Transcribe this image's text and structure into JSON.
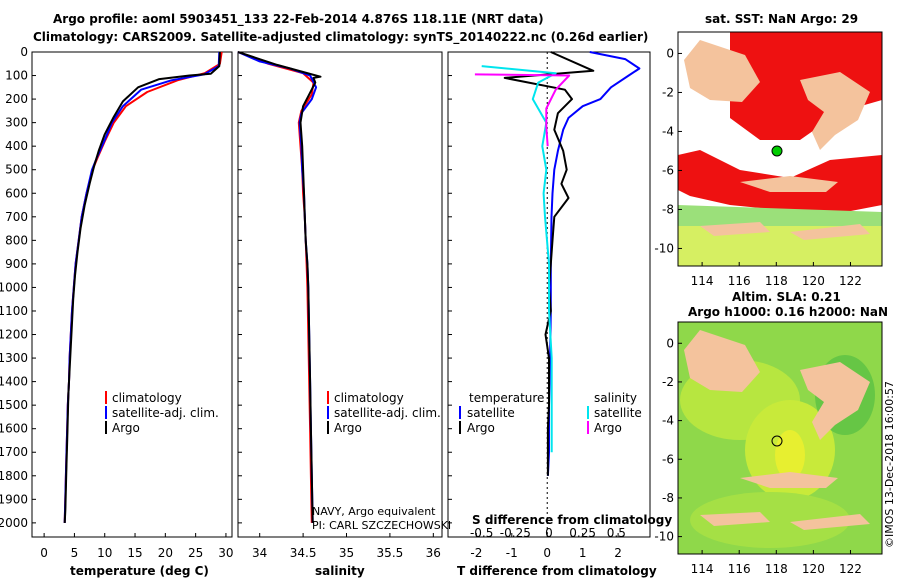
{
  "header": {
    "title_line1": "Argo profile: aoml 5903451_133 22-Feb-2014 4.876S 118.11E (NRT data)",
    "title_line2": "Climatology: CARS2009. Satellite-adjusted climatology: synTS_20140222.nc (0.26d earlier)"
  },
  "colors": {
    "climatology": "#ff0000",
    "satellite": "#0000ff",
    "argo": "#000000",
    "satellite_salinity": "#00e5ee",
    "argo_salinity": "#ff00ff"
  },
  "legend": {
    "climatology": "climatology",
    "satellite_adj": "satellite-adj. clim.",
    "argo": "Argo",
    "temperature_header": "temperature",
    "salinity_header": "salinity",
    "satellite": "satellite"
  },
  "annotation": {
    "navy": "NAVY, Argo equivalent",
    "pi": "PI: CARL SZCZECHOWSKI"
  },
  "credit": "©IMOS 13-Dec-2018 16:00:57",
  "maps": {
    "sst_title": "sat. SST: NaN Argo: 29",
    "sla_title_1": "Altim. SLA: 0.21",
    "sla_title_2": "Argo h1000: 0.16 h2000: NaN",
    "lon_ticks": [
      "114",
      "116",
      "118",
      "120",
      "122"
    ],
    "lat_ticks": [
      "0",
      "-2",
      "-4",
      "-6",
      "-8",
      "-10"
    ]
  },
  "chart_data": [
    {
      "type": "line",
      "title": "",
      "xlabel": "temperature (deg C)",
      "ylabel": "",
      "xlim": [
        -2,
        31
      ],
      "ylim": [
        2060,
        0
      ],
      "x_ticks": [
        "0",
        "5",
        "10",
        "15",
        "20",
        "25",
        "30"
      ],
      "y_ticks": [
        "0",
        "100",
        "200",
        "300",
        "400",
        "500",
        "600",
        "700",
        "800",
        "900",
        "1000",
        "1100",
        "1200",
        "1300",
        "1400",
        "1500",
        "1600",
        "1700",
        "1800",
        "1900",
        "2000"
      ],
      "series": [
        {
          "name": "climatology",
          "color": "#ff0000",
          "points": [
            [
              29.3,
              0
            ],
            [
              29.0,
              50
            ],
            [
              26.5,
              90
            ],
            [
              22,
              120
            ],
            [
              17,
              170
            ],
            [
              13.5,
              230
            ],
            [
              11.5,
              300
            ],
            [
              10,
              380
            ],
            [
              8.8,
              450
            ],
            [
              8,
              500
            ],
            [
              7,
              600
            ],
            [
              6.2,
              700
            ],
            [
              5.7,
              800
            ],
            [
              5.2,
              900
            ],
            [
              4.9,
              1000
            ],
            [
              4.6,
              1100
            ],
            [
              4.4,
              1200
            ],
            [
              4.2,
              1300
            ],
            [
              4.1,
              1400
            ],
            [
              3.9,
              1500
            ],
            [
              3.8,
              1600
            ],
            [
              3.7,
              1700
            ],
            [
              3.6,
              1800
            ],
            [
              3.5,
              1900
            ],
            [
              3.4,
              2000
            ]
          ]
        },
        {
          "name": "satellite-adj. clim.",
          "color": "#0000ff",
          "points": [
            [
              28.9,
              0
            ],
            [
              28.8,
              60
            ],
            [
              26.4,
              95
            ],
            [
              21,
              120
            ],
            [
              16,
              160
            ],
            [
              13,
              230
            ],
            [
              11.2,
              300
            ],
            [
              9.9,
              380
            ],
            [
              8.7,
              450
            ],
            [
              7.9,
              500
            ],
            [
              7,
              600
            ],
            [
              6.2,
              700
            ],
            [
              5.7,
              800
            ],
            [
              5.2,
              900
            ],
            [
              4.9,
              1000
            ],
            [
              4.6,
              1100
            ],
            [
              4.4,
              1200
            ],
            [
              4.2,
              1300
            ],
            [
              4.1,
              1400
            ],
            [
              3.9,
              1500
            ],
            [
              3.8,
              1600
            ],
            [
              3.7,
              1700
            ],
            [
              3.6,
              1800
            ],
            [
              3.5,
              1900
            ],
            [
              3.4,
              2000
            ]
          ]
        },
        {
          "name": "Argo",
          "color": "#000000",
          "points": [
            [
              29.0,
              0
            ],
            [
              28.9,
              60
            ],
            [
              27.5,
              92
            ],
            [
              24,
              100
            ],
            [
              19,
              115
            ],
            [
              15.5,
              150
            ],
            [
              13,
              210
            ],
            [
              11.4,
              280
            ],
            [
              10,
              350
            ],
            [
              9,
              420
            ],
            [
              8.3,
              480
            ],
            [
              7.5,
              560
            ],
            [
              6.7,
              650
            ],
            [
              6.0,
              750
            ],
            [
              5.5,
              850
            ],
            [
              5.1,
              950
            ],
            [
              4.8,
              1050
            ],
            [
              4.6,
              1150
            ],
            [
              4.4,
              1250
            ],
            [
              4.2,
              1350
            ],
            [
              4.0,
              1450
            ],
            [
              3.9,
              1550
            ],
            [
              3.8,
              1650
            ],
            [
              3.7,
              1750
            ],
            [
              3.6,
              1850
            ],
            [
              3.5,
              1950
            ],
            [
              3.4,
              2000
            ]
          ]
        }
      ]
    },
    {
      "type": "line",
      "title": "",
      "xlabel": "salinity",
      "ylabel": "",
      "xlim": [
        33.75,
        36.1
      ],
      "ylim": [
        2060,
        0
      ],
      "x_ticks": [
        "34",
        "34.5",
        "35",
        "35.5",
        "36"
      ],
      "series": [
        {
          "name": "climatology",
          "color": "#ff0000",
          "points": [
            [
              33.75,
              0
            ],
            [
              34.1,
              50
            ],
            [
              34.5,
              90
            ],
            [
              34.62,
              130
            ],
            [
              34.6,
              180
            ],
            [
              34.48,
              250
            ],
            [
              34.45,
              300
            ],
            [
              34.47,
              400
            ],
            [
              34.49,
              500
            ],
            [
              34.5,
              600
            ],
            [
              34.52,
              700
            ],
            [
              34.53,
              800
            ],
            [
              34.54,
              900
            ],
            [
              34.55,
              1000
            ],
            [
              34.56,
              1200
            ],
            [
              34.57,
              1400
            ],
            [
              34.58,
              1600
            ],
            [
              34.59,
              1800
            ],
            [
              34.6,
              2000
            ]
          ]
        },
        {
          "name": "satellite-adj. clim.",
          "color": "#0000ff",
          "points": [
            [
              33.75,
              0
            ],
            [
              34.0,
              40
            ],
            [
              34.35,
              70
            ],
            [
              34.58,
              100
            ],
            [
              34.65,
              150
            ],
            [
              34.6,
              200
            ],
            [
              34.48,
              260
            ],
            [
              34.46,
              300
            ],
            [
              34.48,
              400
            ],
            [
              34.49,
              500
            ],
            [
              34.51,
              600
            ],
            [
              34.52,
              700
            ],
            [
              34.53,
              800
            ],
            [
              34.55,
              900
            ],
            [
              34.56,
              1000
            ],
            [
              34.57,
              1200
            ],
            [
              34.58,
              1400
            ],
            [
              34.59,
              1600
            ],
            [
              34.6,
              1800
            ],
            [
              34.61,
              2000
            ]
          ]
        },
        {
          "name": "Argo",
          "color": "#000000",
          "points": [
            [
              33.75,
              0
            ],
            [
              34.2,
              55
            ],
            [
              34.6,
              95
            ],
            [
              34.7,
              105
            ],
            [
              34.62,
              110
            ],
            [
              34.64,
              130
            ],
            [
              34.57,
              180
            ],
            [
              34.5,
              230
            ],
            [
              34.47,
              300
            ],
            [
              34.49,
              400
            ],
            [
              34.5,
              500
            ],
            [
              34.51,
              600
            ],
            [
              34.52,
              700
            ],
            [
              34.53,
              800
            ],
            [
              34.55,
              900
            ],
            [
              34.56,
              1000
            ],
            [
              34.57,
              1200
            ],
            [
              34.58,
              1400
            ],
            [
              34.59,
              1600
            ],
            [
              34.6,
              1800
            ],
            [
              34.61,
              2000
            ]
          ]
        }
      ]
    },
    {
      "type": "line",
      "title": "",
      "xlabel": "T difference from climatology",
      "ylabel": "",
      "xlim": [
        -2.8,
        2.9
      ],
      "ylim": [
        2060,
        0
      ],
      "x_ticks": [
        "-2",
        "-1",
        "0",
        "1",
        "2"
      ],
      "x2label": "S difference from climatology",
      "x2lim": [
        -0.75,
        0.75
      ],
      "x2_ticks": [
        "-0.5",
        "-0.25",
        "0",
        "0.25",
        "0.5"
      ],
      "series": [
        {
          "name": "temperature satellite",
          "color": "#0000ff",
          "points": [
            [
              1.2,
              0
            ],
            [
              2.2,
              30
            ],
            [
              2.6,
              70
            ],
            [
              2.3,
              100
            ],
            [
              1.8,
              150
            ],
            [
              1.5,
              200
            ],
            [
              1.0,
              230
            ],
            [
              0.6,
              280
            ],
            [
              0.45,
              330
            ],
            [
              0.3,
              420
            ],
            [
              0.2,
              500
            ],
            [
              0.15,
              600
            ],
            [
              0.12,
              700
            ],
            [
              0.1,
              900
            ],
            [
              0.1,
              1100
            ],
            [
              0.08,
              1300
            ],
            [
              0.05,
              1500
            ],
            [
              0.05,
              1700
            ],
            [
              0.02,
              1800
            ]
          ]
        },
        {
          "name": "temperature Argo",
          "color": "#000000",
          "points": [
            [
              0.1,
              0
            ],
            [
              1.3,
              80
            ],
            [
              -1.2,
              110
            ],
            [
              0.5,
              160
            ],
            [
              0.7,
              200
            ],
            [
              0.3,
              260
            ],
            [
              0.2,
              330
            ],
            [
              0.45,
              420
            ],
            [
              0.55,
              500
            ],
            [
              0.4,
              560
            ],
            [
              0.6,
              620
            ],
            [
              0.2,
              700
            ],
            [
              0.15,
              800
            ],
            [
              0.1,
              900
            ],
            [
              0.05,
              1000
            ],
            [
              0.1,
              1100
            ],
            [
              -0.05,
              1200
            ],
            [
              0.05,
              1300
            ],
            [
              0.05,
              1400
            ],
            [
              0.05,
              1500
            ],
            [
              0.02,
              1600
            ],
            [
              0.02,
              1700
            ],
            [
              0.02,
              1800
            ]
          ]
        },
        {
          "name": "salinity satellite",
          "color": "#00e5ee",
          "points": [
            [
              -0.5,
              60
            ],
            [
              0.05,
              90
            ],
            [
              -0.08,
              130
            ],
            [
              -0.12,
              200
            ],
            [
              -0.02,
              300
            ],
            [
              -0.05,
              400
            ],
            [
              -0.02,
              500
            ],
            [
              -0.04,
              600
            ],
            [
              -0.03,
              700
            ],
            [
              0.0,
              900
            ],
            [
              0.0,
              1100
            ],
            [
              0.02,
              1300
            ],
            [
              0.02,
              1500
            ],
            [
              0.02,
              1700
            ]
          ]
        },
        {
          "name": "salinity Argo",
          "color": "#ff00ff",
          "points": [
            [
              -0.55,
              95
            ],
            [
              0.15,
              100
            ],
            [
              0.05,
              160
            ],
            [
              -0.02,
              240
            ],
            [
              -0.02,
              320
            ],
            [
              -0.01,
              400
            ]
          ]
        }
      ]
    }
  ]
}
